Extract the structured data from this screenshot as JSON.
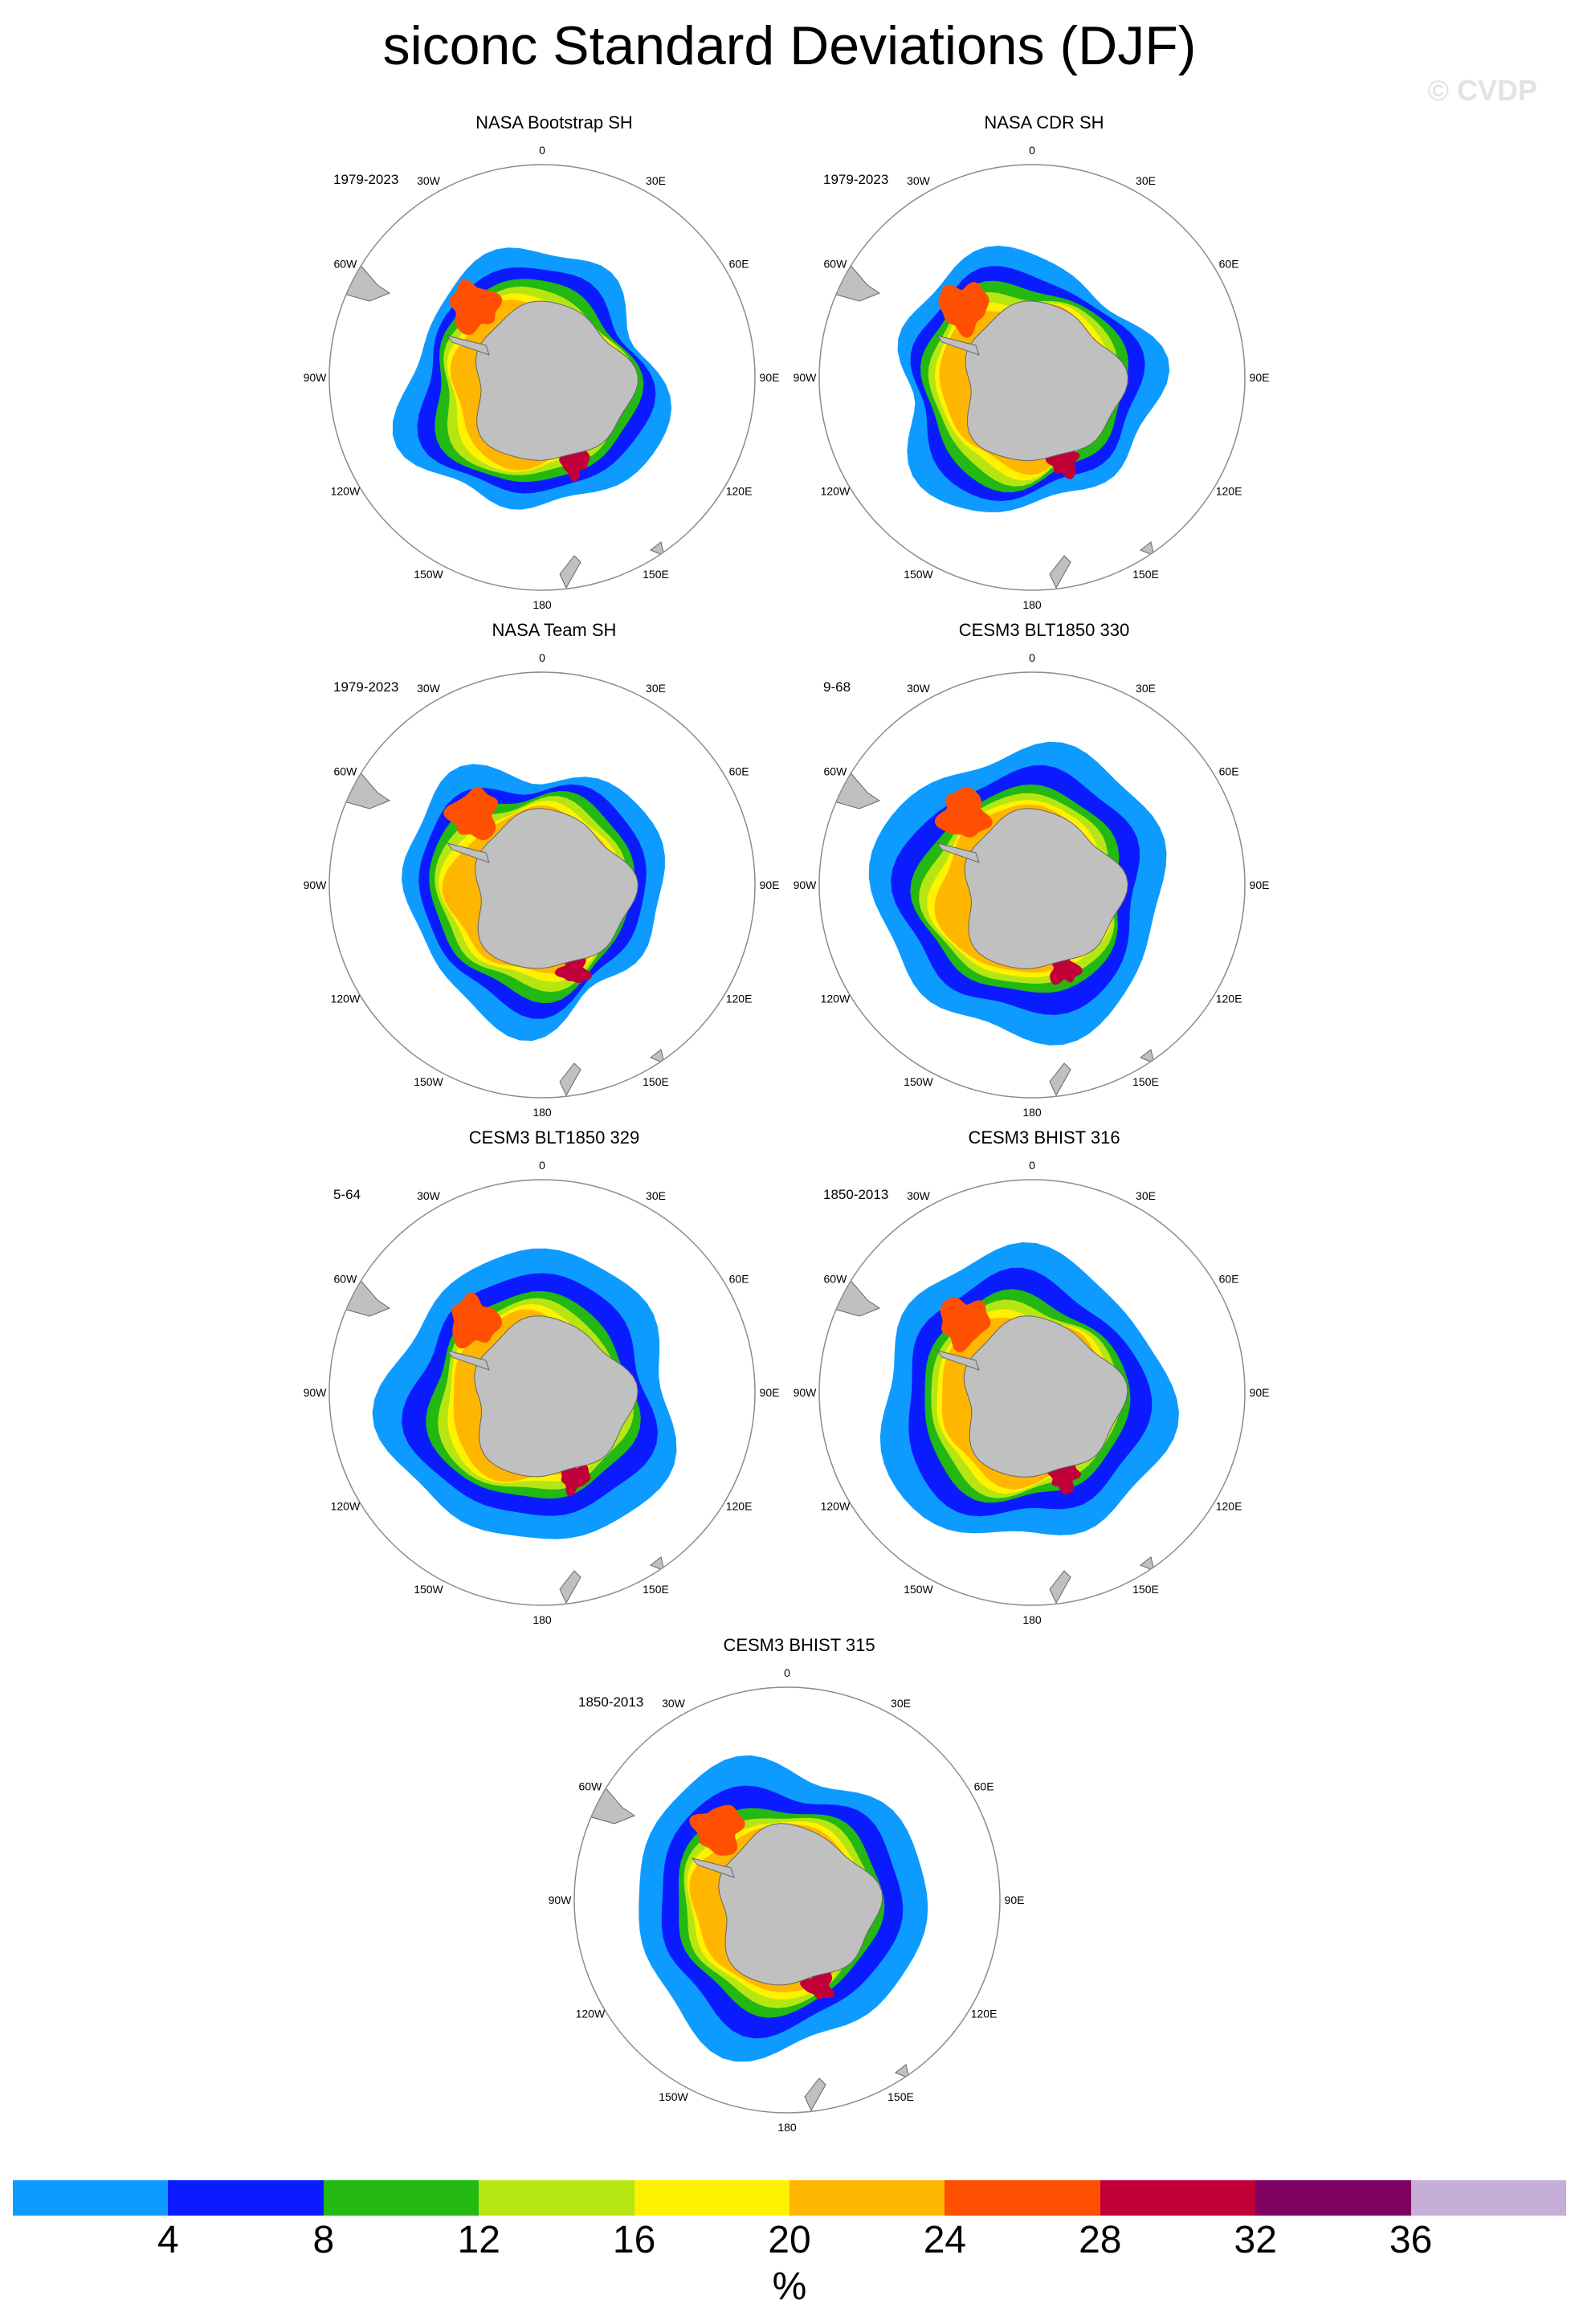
{
  "title": "siconc Standard Deviations (DJF)",
  "watermark": "© CVDP",
  "lon_labels": {
    "l0": "0",
    "l30e": "30E",
    "l60e": "60E",
    "l90e": "90E",
    "l120e": "120E",
    "l150e": "150E",
    "l180": "180",
    "l150w": "150W",
    "l120w": "120W",
    "l90w": "90W",
    "l60w": "60W",
    "l30w": "30W"
  },
  "panels": [
    {
      "title": "NASA Bootstrap SH",
      "period": "1979-2023"
    },
    {
      "title": "NASA CDR SH",
      "period": "1979-2023"
    },
    {
      "title": "NASA Team SH",
      "period": "1979-2023"
    },
    {
      "title": "CESM3 BLT1850 330",
      "period": "9-68"
    },
    {
      "title": "CESM3 BLT1850 329",
      "period": "5-64"
    },
    {
      "title": "CESM3 BHIST 316",
      "period": "1850-2013"
    },
    {
      "title": "CESM3 BHIST 315",
      "period": "1850-2013"
    }
  ],
  "colorbar": {
    "colors": [
      "#0d9bff",
      "#0a1cff",
      "#23b812",
      "#b6e612",
      "#fff200",
      "#ffb600",
      "#ff4f00",
      "#c1003a",
      "#7e0061",
      "#c6aed8"
    ],
    "labels": [
      "4",
      "8",
      "12",
      "16",
      "20",
      "24",
      "28",
      "32",
      "36"
    ],
    "units": "%"
  },
  "colors": {
    "land": "#c0c0c0",
    "circle": "#8c8c8c"
  }
}
